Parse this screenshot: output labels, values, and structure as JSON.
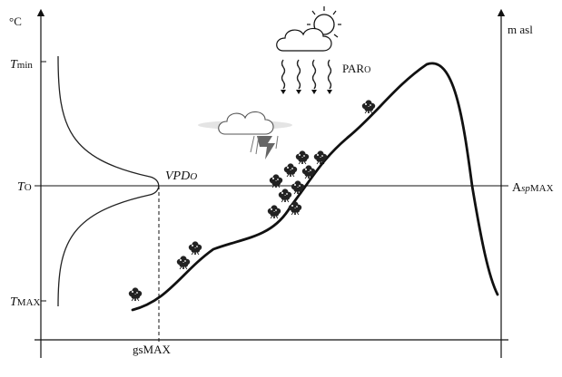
{
  "diagram": {
    "left_axis": {
      "unit": "°C",
      "labels": {
        "tmin": {
          "main": "T",
          "sub": "min"
        },
        "to": {
          "main": "T",
          "sub": "O"
        },
        "tmax": {
          "main": "T",
          "sub": "MAX"
        }
      }
    },
    "right_axis": {
      "unit": "m asl",
      "label": {
        "main": "A",
        "sub_italic": "sp",
        "sub": "MAX"
      }
    },
    "bottom_label": "gsMAX",
    "vpd_label": {
      "main": "VPD",
      "sub": "O"
    },
    "par_label": {
      "main": "PAR",
      "sub": "O"
    },
    "icons": [
      "sun-icon",
      "cloud-icon",
      "storm-cloud-icon",
      "tree-icon"
    ]
  }
}
